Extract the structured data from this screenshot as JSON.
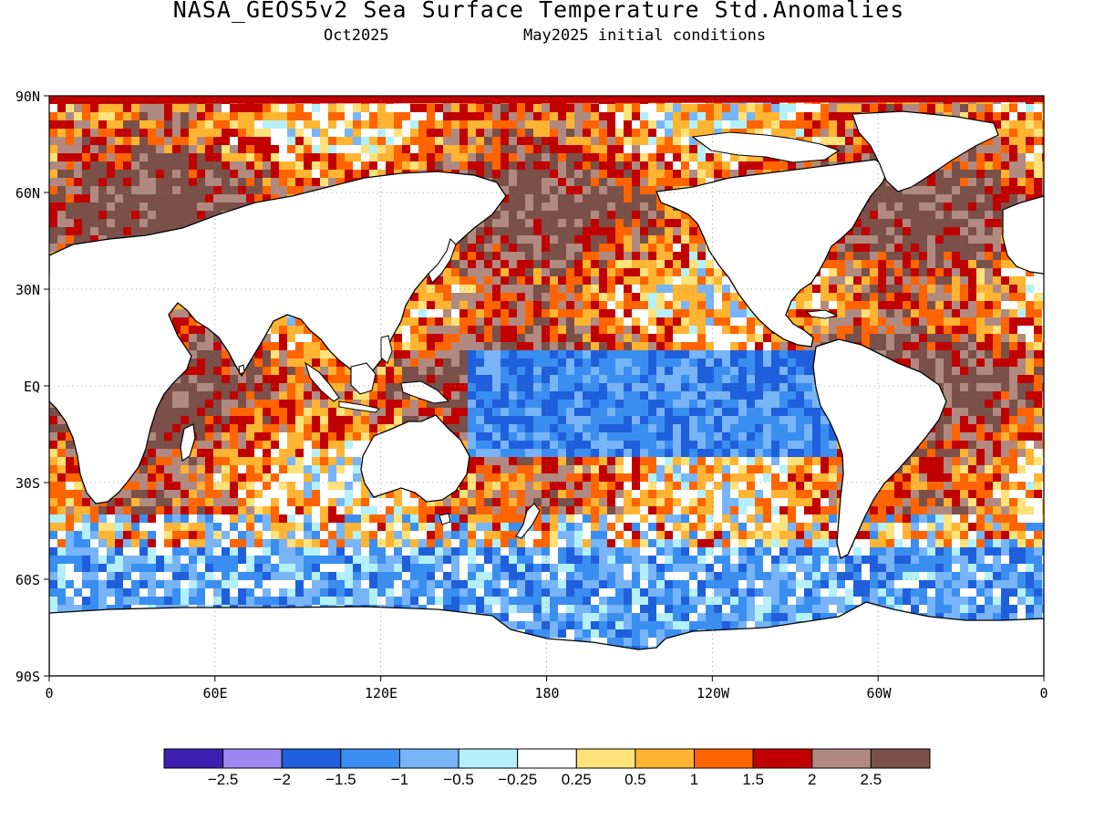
{
  "title": "NASA_GEOS5v2 Sea Surface Temperature Std.Anomalies",
  "subtitle_left": "Oct2025",
  "subtitle_right": "May2025 initial conditions",
  "lat_labels": [
    "90N",
    "60N",
    "30N",
    "EQ",
    "30S",
    "60S",
    "90S"
  ],
  "lon_labels": [
    "0",
    "60E",
    "120E",
    "180",
    "120W",
    "60W",
    "0"
  ],
  "colorbar": {
    "colors": [
      "#3a1fb0",
      "#9a88f0",
      "#1f5fdc",
      "#3a8ef0",
      "#78b4f8",
      "#b4f0fa",
      "#ffffff",
      "#ffe27a",
      "#ffb432",
      "#ff6400",
      "#c00000",
      "#b08a80",
      "#7a5048"
    ],
    "labels": [
      "-2.5",
      "-2",
      "-1.5",
      "-1",
      "-0.5",
      "-0.25",
      "0.25",
      "0.5",
      "1",
      "1.5",
      "2",
      "2.5"
    ]
  },
  "map_style": {
    "land_color": "#ffffff",
    "coastline_color": "#000000",
    "grid_style": "dotted"
  }
}
